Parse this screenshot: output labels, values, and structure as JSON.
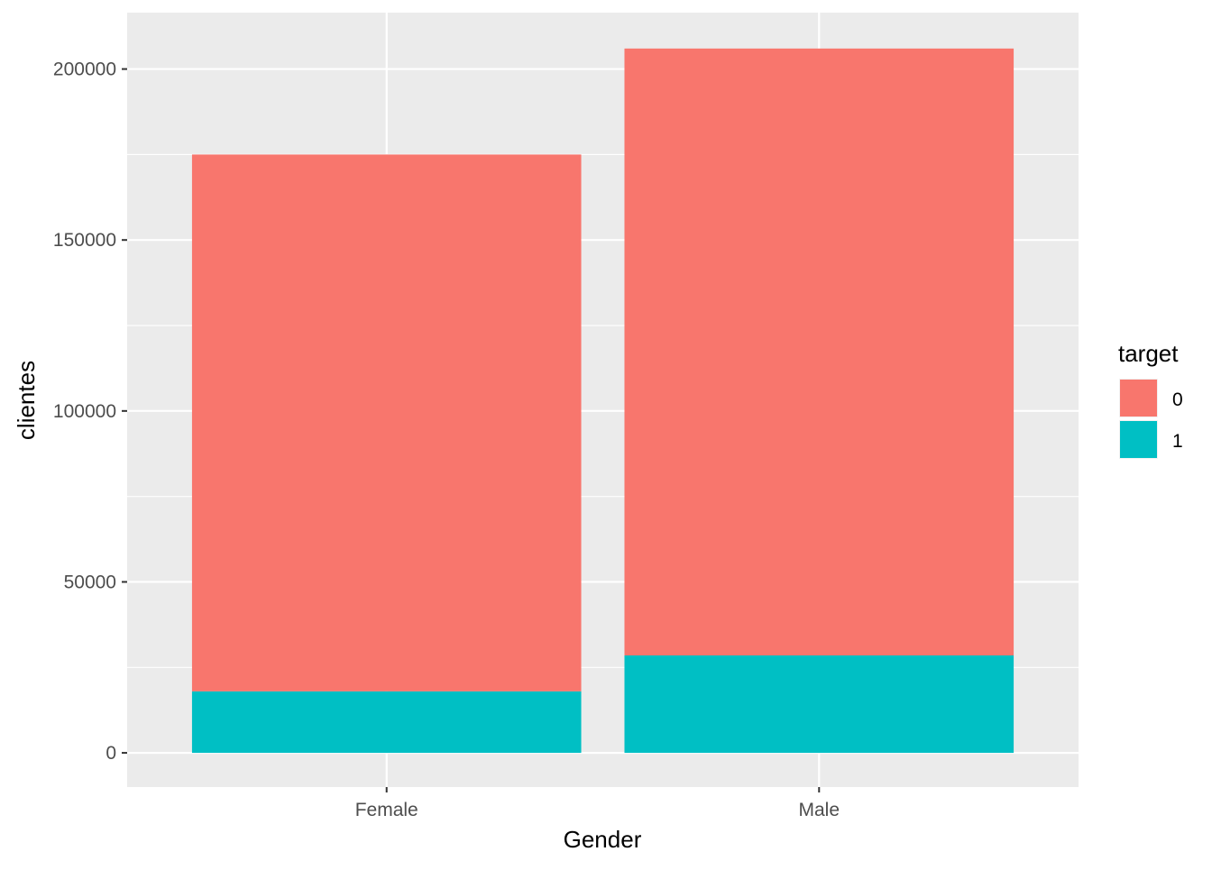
{
  "chart_data": {
    "type": "bar",
    "stacked": true,
    "categories": [
      "Female",
      "Male"
    ],
    "series": [
      {
        "name": "1",
        "color": "#00BFC4",
        "values": [
          18000,
          28500
        ]
      },
      {
        "name": "0",
        "color": "#F8766D",
        "values": [
          157000,
          177500
        ]
      }
    ],
    "xlabel": "Gender",
    "ylabel": "clientes",
    "ylim": [
      -10000,
      216500
    ],
    "yticks": [
      0,
      50000,
      100000,
      150000,
      200000
    ],
    "ytick_labels": [
      "0",
      "50000",
      "100000",
      "150000",
      "200000"
    ],
    "grid": true,
    "panel_background": "#EBEBEB",
    "gridline_color": "#FFFFFF",
    "legend": {
      "title": "target",
      "placement": "right",
      "entries": [
        {
          "label": "0",
          "color": "#F8766D"
        },
        {
          "label": "1",
          "color": "#00BFC4"
        }
      ]
    }
  }
}
